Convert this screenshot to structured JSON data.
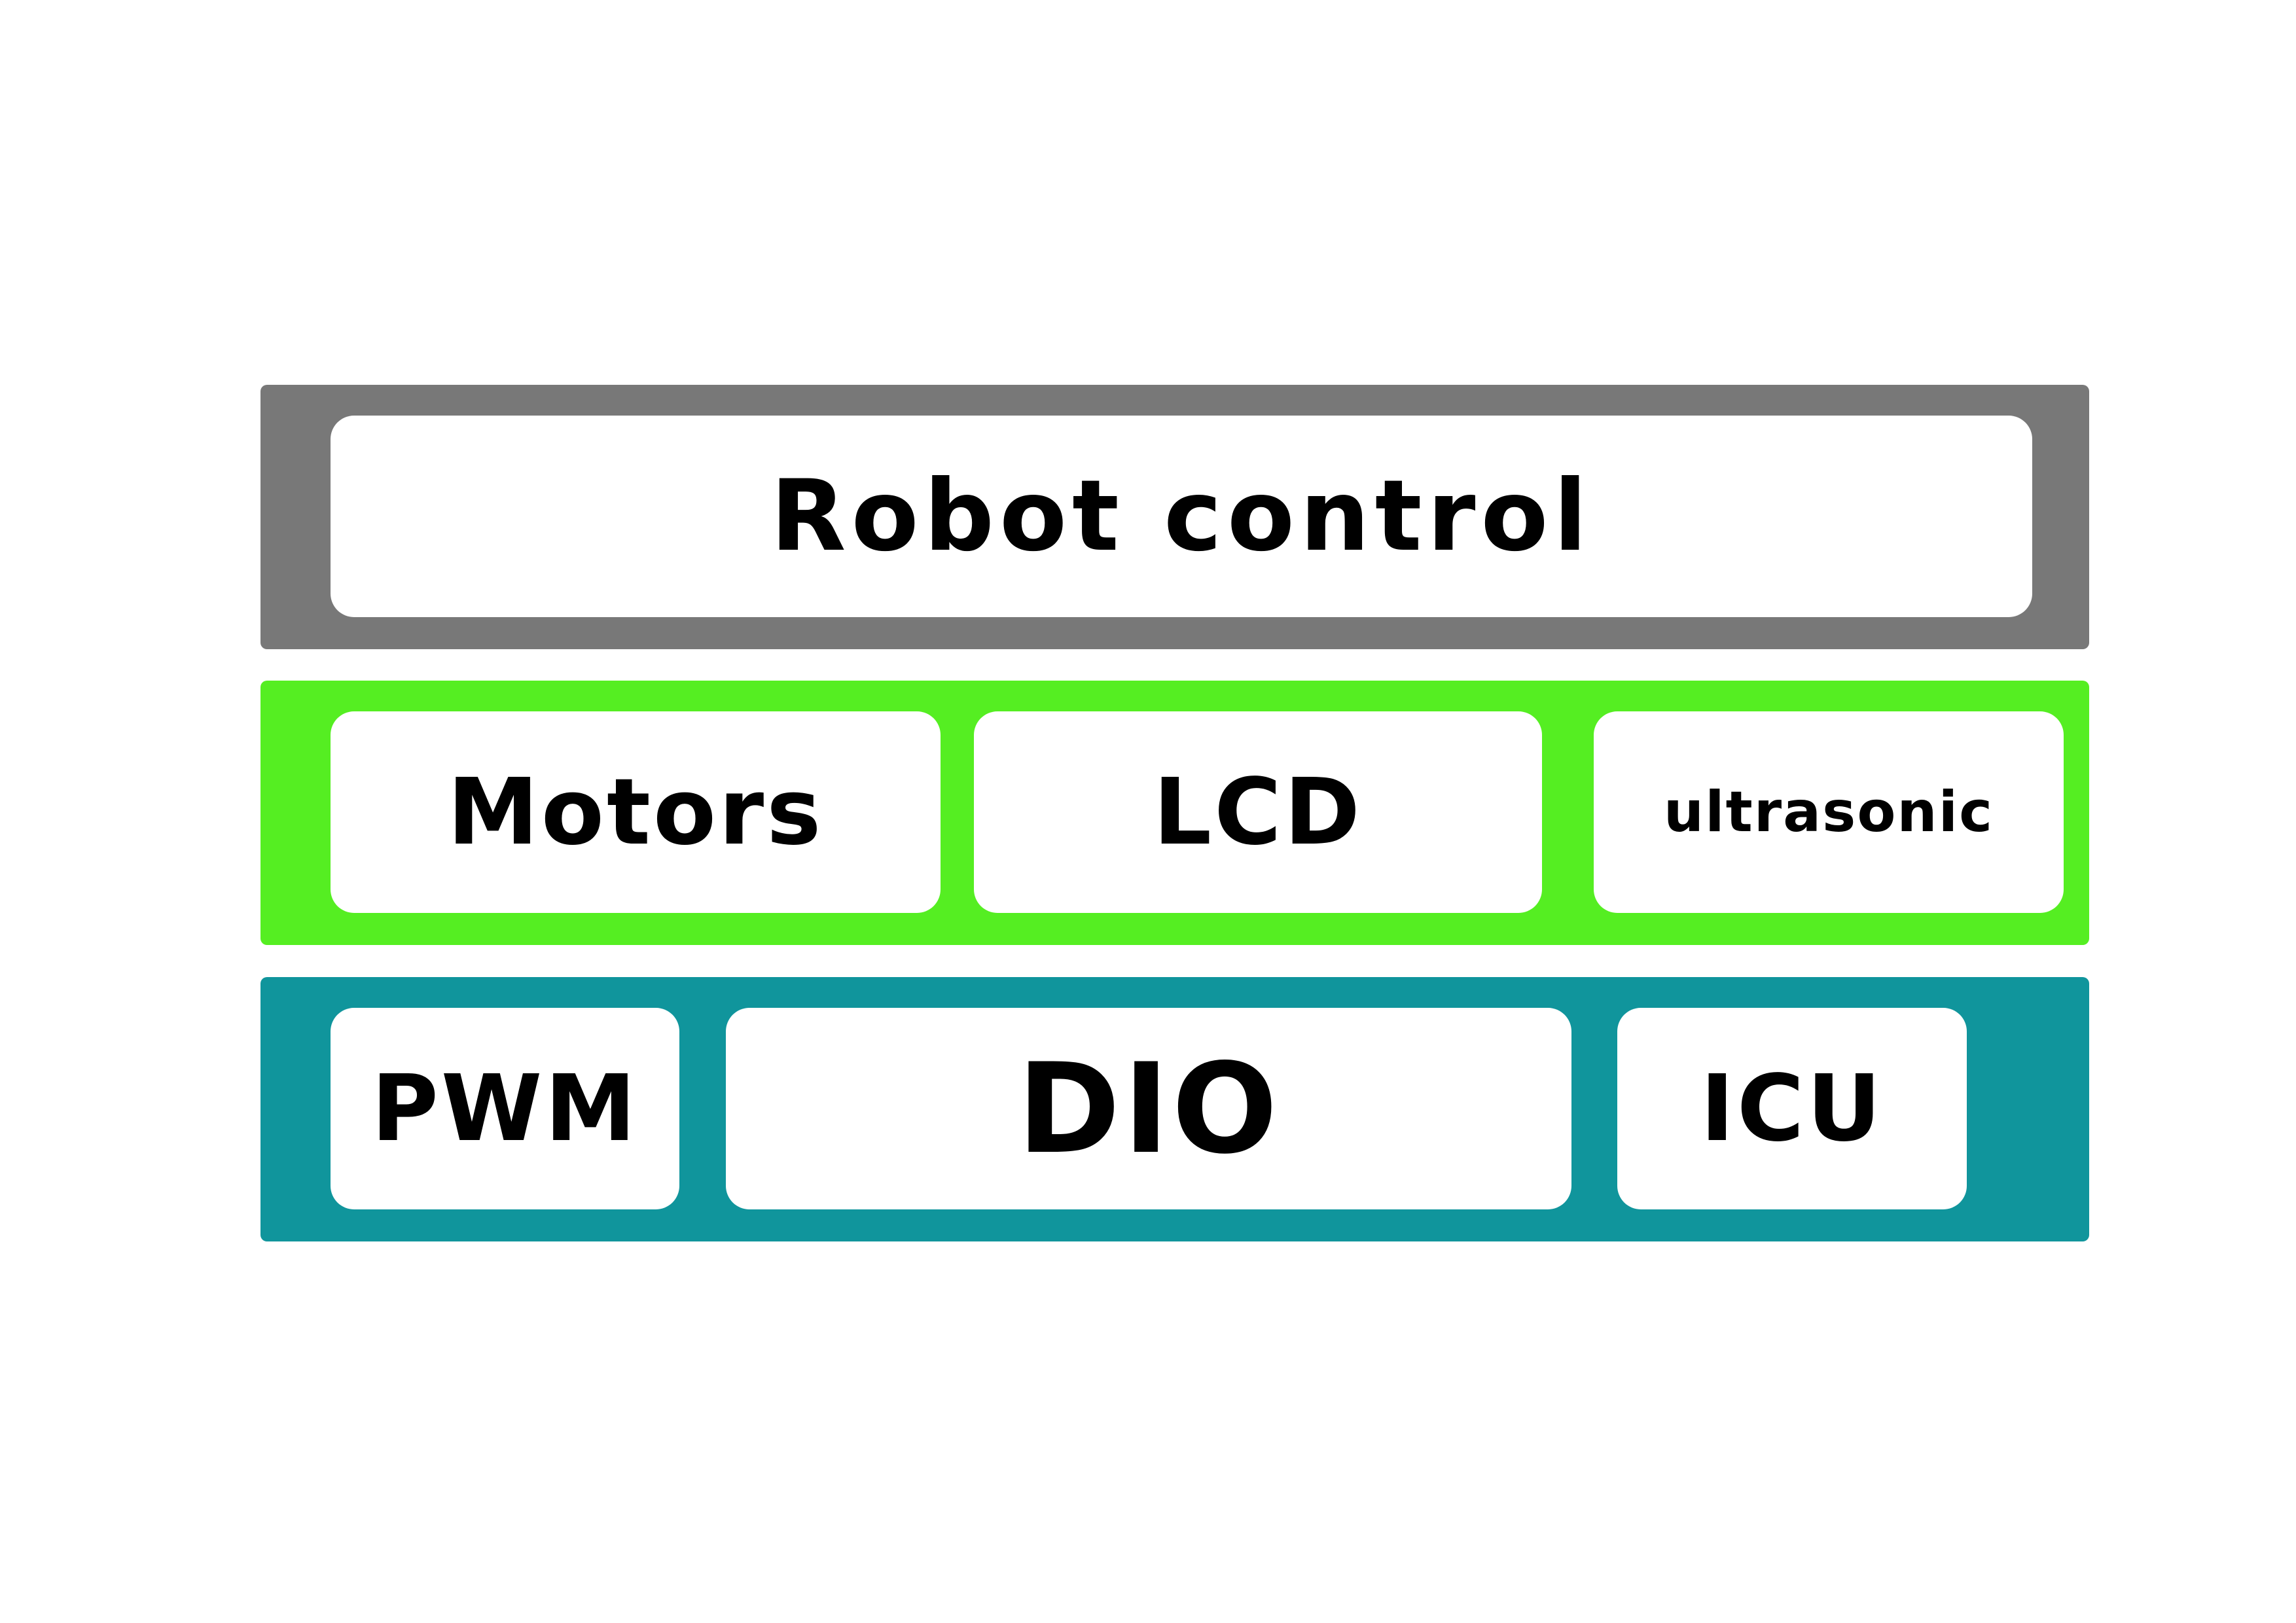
{
  "colors": {
    "top_layer": "#787878",
    "middle_layer": "#55ee22",
    "bottom_layer": "#10959c",
    "module_fill": "#ffffff",
    "text": "#000000"
  },
  "layers": {
    "top": {
      "modules": [
        {
          "label": "Robot control"
        }
      ]
    },
    "middle": {
      "modules": [
        {
          "label": "Motors"
        },
        {
          "label": "LCD"
        },
        {
          "label": "ultrasonic"
        }
      ]
    },
    "bottom": {
      "modules": [
        {
          "label": "PWM"
        },
        {
          "label": "DIO"
        },
        {
          "label": "ICU"
        }
      ]
    }
  }
}
